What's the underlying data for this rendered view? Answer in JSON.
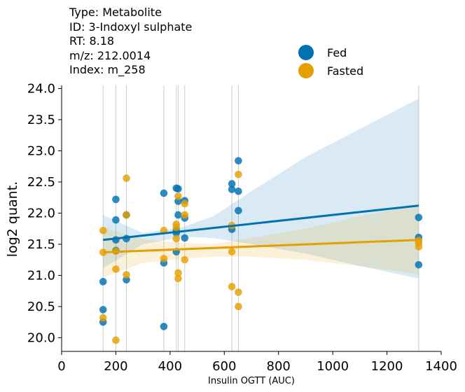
{
  "info": {
    "type_line": "Type: Metabolite",
    "id_line": "ID: 3-Indoxyl sulphate",
    "rt_line": "RT: 8.18",
    "mz_line": "m/z: 212.0014",
    "index_line": "Index: m_258"
  },
  "colors": {
    "fed": "#0072b2",
    "fasted": "#e69f00",
    "grid": "#cccccc"
  },
  "chart_data": {
    "type": "scatter",
    "xlabel": "Insulin OGTT (AUC)",
    "ylabel": "log2 quant.",
    "xlim": [
      0,
      1400
    ],
    "ylim": [
      19.78,
      24.05
    ],
    "xticks": [
      0,
      200,
      400,
      600,
      800,
      1000,
      1200,
      1400
    ],
    "yticks": [
      20.0,
      20.5,
      21.0,
      21.5,
      22.0,
      22.5,
      23.0,
      23.5,
      24.0
    ],
    "vlines": [
      153,
      200,
      239,
      377,
      423,
      430,
      454,
      628,
      652,
      1317
    ],
    "legend_position": "upper-right",
    "series": [
      {
        "name": "Fed",
        "color": "#0072b2",
        "points": [
          [
            153,
            20.9
          ],
          [
            153,
            20.45
          ],
          [
            153,
            20.25
          ],
          [
            200,
            22.22
          ],
          [
            200,
            21.89
          ],
          [
            200,
            21.57
          ],
          [
            200,
            21.4
          ],
          [
            239,
            21.97
          ],
          [
            239,
            21.59
          ],
          [
            239,
            20.93
          ],
          [
            377,
            22.32
          ],
          [
            377,
            21.2
          ],
          [
            377,
            20.18
          ],
          [
            423,
            22.4
          ],
          [
            423,
            21.72
          ],
          [
            423,
            21.68
          ],
          [
            423,
            21.38
          ],
          [
            430,
            22.39
          ],
          [
            430,
            22.19
          ],
          [
            430,
            21.97
          ],
          [
            454,
            22.2
          ],
          [
            454,
            21.92
          ],
          [
            454,
            21.6
          ],
          [
            628,
            22.47
          ],
          [
            628,
            22.38
          ],
          [
            628,
            21.74
          ],
          [
            652,
            22.84
          ],
          [
            652,
            22.35
          ],
          [
            652,
            22.04
          ],
          [
            1317,
            21.93
          ],
          [
            1317,
            21.61
          ],
          [
            1317,
            21.17
          ]
        ],
        "fit": {
          "x": [
            153,
            1317
          ],
          "y": [
            21.57,
            22.12
          ]
        },
        "ci": {
          "x": [
            153,
            300,
            450,
            560,
            700,
            900,
            1100,
            1317
          ],
          "lower": [
            21.12,
            21.5,
            21.62,
            21.6,
            21.5,
            21.35,
            21.15,
            20.95
          ],
          "upper": [
            21.97,
            21.68,
            21.78,
            21.95,
            22.35,
            22.9,
            23.35,
            23.84
          ]
        }
      },
      {
        "name": "Fasted",
        "color": "#e69f00",
        "points": [
          [
            153,
            21.72
          ],
          [
            153,
            21.37
          ],
          [
            153,
            20.32
          ],
          [
            200,
            21.39
          ],
          [
            200,
            21.1
          ],
          [
            200,
            19.96
          ],
          [
            239,
            22.56
          ],
          [
            239,
            21.97
          ],
          [
            239,
            21.01
          ],
          [
            377,
            21.72
          ],
          [
            377,
            21.27
          ],
          [
            423,
            21.82
          ],
          [
            423,
            21.77
          ],
          [
            423,
            21.59
          ],
          [
            430,
            22.27
          ],
          [
            430,
            21.04
          ],
          [
            430,
            20.95
          ],
          [
            454,
            22.15
          ],
          [
            454,
            21.97
          ],
          [
            454,
            21.25
          ],
          [
            628,
            21.8
          ],
          [
            628,
            21.38
          ],
          [
            628,
            20.82
          ],
          [
            652,
            22.62
          ],
          [
            652,
            20.73
          ],
          [
            652,
            20.5
          ],
          [
            1317,
            21.56
          ],
          [
            1317,
            21.52
          ],
          [
            1317,
            21.46
          ]
        ],
        "fit": {
          "x": [
            153,
            1317
          ],
          "y": [
            21.37,
            21.57
          ]
        },
        "ci": {
          "x": [
            153,
            300,
            450,
            560,
            700,
            900,
            1100,
            1317
          ],
          "lower": [
            20.97,
            21.2,
            21.27,
            21.3,
            21.3,
            21.25,
            21.15,
            21.02
          ],
          "upper": [
            21.77,
            21.58,
            21.52,
            21.5,
            21.6,
            21.75,
            21.95,
            22.13
          ]
        }
      }
    ]
  }
}
